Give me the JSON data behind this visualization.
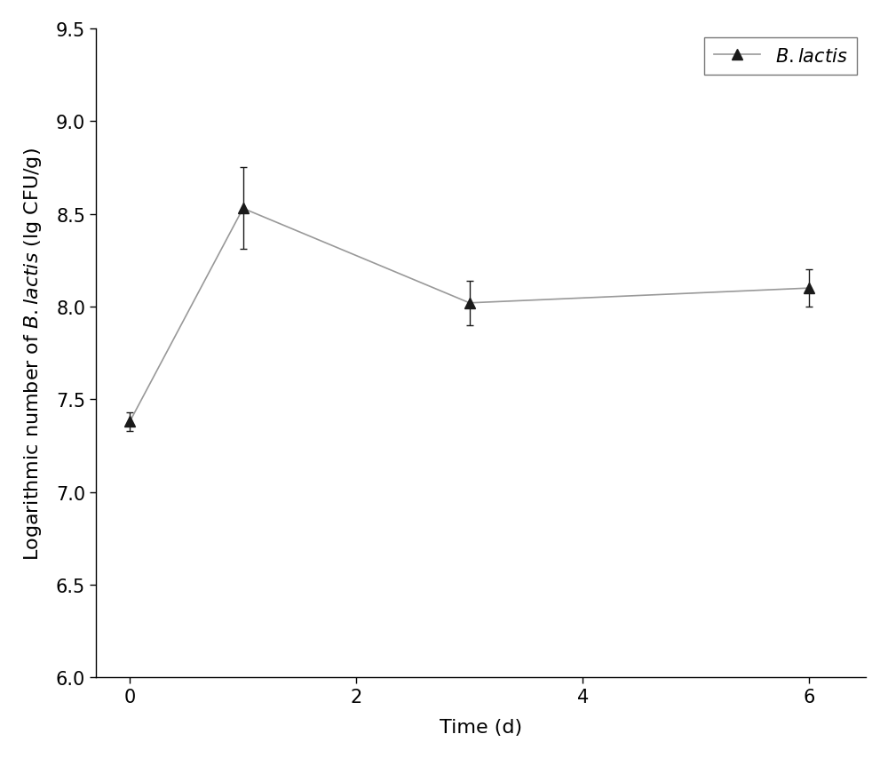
{
  "x": [
    0,
    1,
    3,
    6
  ],
  "y": [
    7.38,
    8.53,
    8.02,
    8.1
  ],
  "yerr": [
    0.05,
    0.22,
    0.12,
    0.1
  ],
  "xlim": [
    -0.3,
    6.5
  ],
  "ylim": [
    6.0,
    9.5
  ],
  "xticks": [
    0,
    2,
    4,
    6
  ],
  "yticks": [
    6.0,
    6.5,
    7.0,
    7.5,
    8.0,
    8.5,
    9.0,
    9.5
  ],
  "xlabel": "Time (d)",
  "ylabel": "Logarithmic number of $\\it{B. lactis}$ (lg CFU/g)",
  "legend_label": "$\\it{B. lactis}$",
  "line_color": "#999999",
  "marker_color": "#1a1a1a",
  "marker_size": 9,
  "line_width": 1.2,
  "capsize": 3,
  "elinewidth": 1.0,
  "tick_fontsize": 15,
  "label_fontsize": 16,
  "legend_fontsize": 15,
  "background_color": "#ffffff",
  "figure_width": 10.0,
  "figure_height": 8.54
}
